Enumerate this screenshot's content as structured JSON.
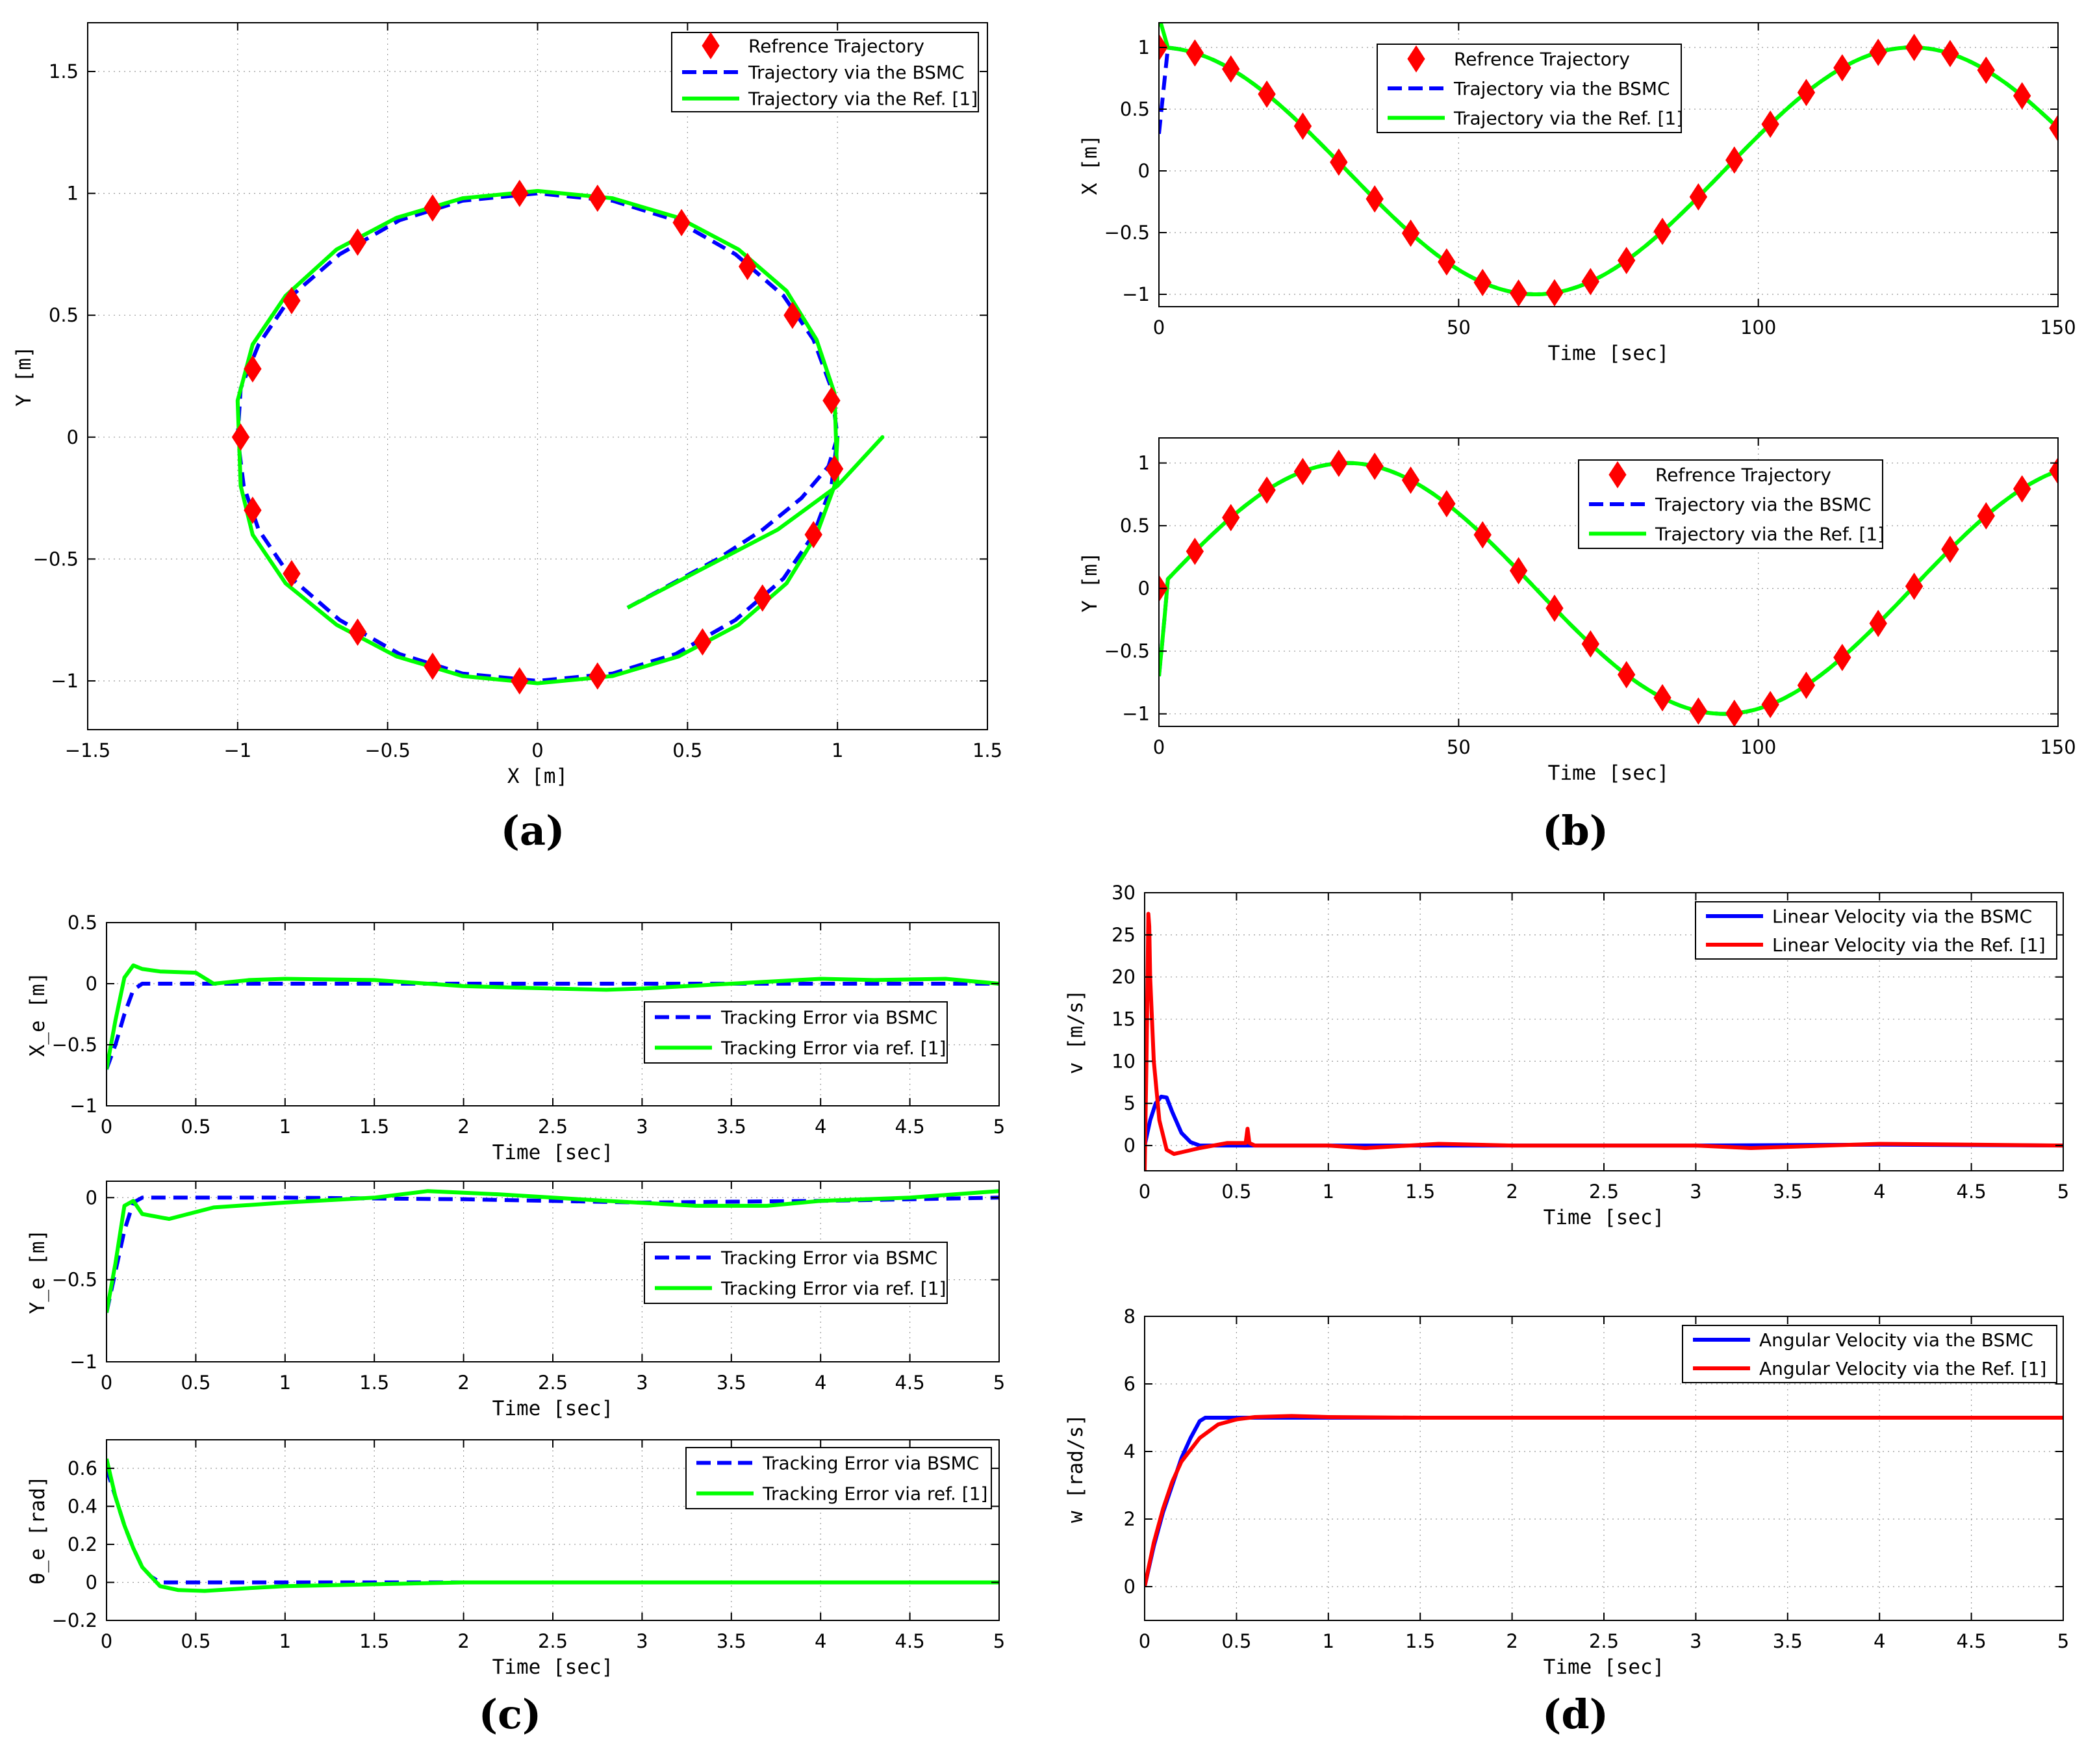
{
  "chart_data": [
    {
      "id": "a",
      "type": "line",
      "panel_label": "(a)",
      "xlabel": "X [m]",
      "ylabel": "Y [m]",
      "xlim": [
        -1.5,
        1.5
      ],
      "ylim": [
        -1.2,
        1.7
      ],
      "xticks": [
        -1.5,
        -1,
        -0.5,
        0,
        0.5,
        1,
        1.5
      ],
      "yticks": [
        -1,
        -0.5,
        0,
        0.5,
        1,
        1.5
      ],
      "xtick_labels": [
        "−1.5",
        "−1",
        "−0.5",
        "0",
        "0.5",
        "1",
        "1.5"
      ],
      "ytick_labels": [
        "−1",
        "−0.5",
        "0",
        "0.5",
        "1",
        "1.5"
      ],
      "grid": true,
      "legend_position": "top-right",
      "series": [
        {
          "name": "Refrence Trajectory",
          "style": "diamond",
          "color": "#ff0000",
          "x": [
            -0.06,
            0.2,
            0.48,
            0.7,
            0.85,
            0.98,
            0.99,
            0.92,
            0.75,
            0.55,
            0.2,
            -0.06,
            -0.35,
            -0.6,
            -0.82,
            -0.95,
            -0.99,
            -0.95,
            -0.82,
            -0.6,
            -0.35
          ],
          "y": [
            1.0,
            0.98,
            0.88,
            0.7,
            0.5,
            0.15,
            -0.13,
            -0.4,
            -0.66,
            -0.84,
            -0.98,
            -1.0,
            -0.94,
            -0.8,
            -0.56,
            -0.3,
            0.0,
            0.28,
            0.56,
            0.8,
            0.94
          ]
        },
        {
          "name": "Trajectory via the BSMC",
          "style": "dashed",
          "color": "#0000ff",
          "x": [
            0.3,
            0.45,
            0.6,
            0.75,
            0.88,
            0.97,
            1.0,
            0.98,
            0.92,
            0.82,
            0.66,
            0.46,
            0.25,
            0.0,
            -0.25,
            -0.46,
            -0.66,
            -0.82,
            -0.93,
            -0.99,
            -1.0,
            -0.98,
            -0.93,
            -0.82,
            -0.66,
            -0.46,
            -0.25,
            0.0,
            0.25,
            0.46,
            0.66,
            0.82,
            0.92,
            0.98,
            1.0
          ],
          "y": [
            -0.7,
            -0.6,
            -0.5,
            -0.38,
            -0.25,
            -0.12,
            0.0,
            0.2,
            0.4,
            0.58,
            0.75,
            0.89,
            0.97,
            1.0,
            0.97,
            0.89,
            0.75,
            0.58,
            0.38,
            0.2,
            0.0,
            -0.2,
            -0.38,
            -0.58,
            -0.75,
            -0.89,
            -0.97,
            -1.0,
            -0.97,
            -0.89,
            -0.75,
            -0.58,
            -0.4,
            -0.2,
            0.0
          ]
        },
        {
          "name": "Trajectory via the Ref. [1]",
          "style": "solid",
          "color": "#00ff00",
          "x": [
            0.3,
            0.55,
            0.8,
            1.0,
            1.15,
            1.0,
            0.99,
            0.93,
            0.83,
            0.67,
            0.47,
            0.25,
            0.0,
            -0.25,
            -0.47,
            -0.67,
            -0.84,
            -0.95,
            -1.0,
            -0.99,
            -0.95,
            -0.84,
            -0.67,
            -0.47,
            -0.25,
            0.0,
            0.25,
            0.47,
            0.67,
            0.83,
            0.93,
            0.99,
            1.0
          ],
          "y": [
            -0.7,
            -0.54,
            -0.38,
            -0.2,
            0.0,
            -0.2,
            0.18,
            0.4,
            0.6,
            0.77,
            0.9,
            0.98,
            1.01,
            0.98,
            0.9,
            0.77,
            0.58,
            0.38,
            0.15,
            -0.2,
            -0.4,
            -0.6,
            -0.77,
            -0.9,
            -0.98,
            -1.01,
            -0.98,
            -0.9,
            -0.77,
            -0.6,
            -0.4,
            -0.2,
            0.0
          ]
        }
      ]
    },
    {
      "id": "b1",
      "type": "line",
      "panel_label": "(b)",
      "xlabel": "Time [sec]",
      "ylabel": "X [m]",
      "xlim": [
        0,
        150
      ],
      "ylim": [
        -1.1,
        1.2
      ],
      "xticks": [
        0,
        50,
        100,
        150
      ],
      "yticks": [
        -1,
        -0.5,
        0,
        0.5,
        1
      ],
      "xtick_labels": [
        "0",
        "50",
        "100",
        "150"
      ],
      "ytick_labels": [
        "−1",
        "−0.5",
        "0",
        "0.5",
        "1"
      ],
      "grid": true,
      "legend_position": "top-center",
      "series": [
        {
          "name": "Refrence Trajectory",
          "style": "diamond",
          "color": "#ff0000",
          "function": "cos",
          "marker_spacing": 6
        },
        {
          "name": "Trajectory via the BSMC",
          "style": "dashed",
          "color": "#0000ff",
          "function": "cos",
          "initial_value": 0.3
        },
        {
          "name": "Trajectory via the Ref. [1]",
          "style": "solid",
          "color": "#00ff00",
          "function": "cos",
          "initial_value": 1.25
        }
      ],
      "period": 125.66
    },
    {
      "id": "b2",
      "type": "line",
      "xlabel": "Time [sec]",
      "ylabel": "Y [m]",
      "xlim": [
        0,
        150
      ],
      "ylim": [
        -1.1,
        1.2
      ],
      "xticks": [
        0,
        50,
        100,
        150
      ],
      "yticks": [
        -1,
        -0.5,
        0,
        0.5,
        1
      ],
      "xtick_labels": [
        "0",
        "50",
        "100",
        "150"
      ],
      "ytick_labels": [
        "−1",
        "−0.5",
        "0",
        "0.5",
        "1"
      ],
      "grid": true,
      "legend_position": "top-right",
      "series": [
        {
          "name": "Refrence Trajectory",
          "style": "diamond",
          "color": "#ff0000",
          "function": "sin",
          "marker_spacing": 6
        },
        {
          "name": "Trajectory via the BSMC",
          "style": "dashed",
          "color": "#0000ff",
          "function": "sin",
          "initial_value": -0.7
        },
        {
          "name": "Trajectory via the Ref. [1]",
          "style": "solid",
          "color": "#00ff00",
          "function": "sin",
          "initial_value": -0.7
        }
      ],
      "period": 125.66
    },
    {
      "id": "c1",
      "type": "line",
      "panel_label": "(c)",
      "xlabel": "Time [sec]",
      "ylabel": "X_e [m]",
      "xlim": [
        0,
        5
      ],
      "ylim": [
        -1,
        0.5
      ],
      "xticks": [
        0,
        0.5,
        1,
        1.5,
        2,
        2.5,
        3,
        3.5,
        4,
        4.5,
        5
      ],
      "yticks": [
        -1,
        -0.5,
        0,
        0.5
      ],
      "xtick_labels": [
        "0",
        "0.5",
        "1",
        "1.5",
        "2",
        "2.5",
        "3",
        "3.5",
        "4",
        "4.5",
        "5"
      ],
      "ytick_labels": [
        "−1",
        "−0.5",
        "0",
        "0.5"
      ],
      "grid": true,
      "legend_position": "right",
      "series": [
        {
          "name": "Tracking Error via BSMC",
          "style": "dashed",
          "color": "#0000ff",
          "x": [
            0,
            0.05,
            0.1,
            0.15,
            0.2,
            0.3,
            0.6,
            1.0,
            2.0,
            3.0,
            4.0,
            5.0
          ],
          "y": [
            -0.7,
            -0.5,
            -0.25,
            -0.05,
            0.0,
            0.0,
            0.0,
            0.0,
            0.0,
            0.0,
            0.0,
            0.0
          ]
        },
        {
          "name": "Tracking Error via ref. [1]",
          "style": "solid",
          "color": "#00ff00",
          "x": [
            0,
            0.05,
            0.1,
            0.15,
            0.2,
            0.3,
            0.5,
            0.6,
            0.8,
            1.0,
            1.5,
            2.0,
            2.5,
            2.8,
            3.0,
            3.5,
            4.0,
            4.3,
            4.7,
            5.0
          ],
          "y": [
            -0.7,
            -0.3,
            0.05,
            0.15,
            0.12,
            0.1,
            0.09,
            0.0,
            0.03,
            0.04,
            0.03,
            -0.02,
            -0.04,
            -0.05,
            -0.04,
            0.0,
            0.04,
            0.03,
            0.04,
            0.0
          ]
        }
      ]
    },
    {
      "id": "c2",
      "type": "line",
      "xlabel": "Time [sec]",
      "ylabel": "Y_e [m]",
      "xlim": [
        0,
        5
      ],
      "ylim": [
        -1,
        0.1
      ],
      "xticks": [
        0,
        0.5,
        1,
        1.5,
        2,
        2.5,
        3,
        3.5,
        4,
        4.5,
        5
      ],
      "yticks": [
        -1,
        -0.5,
        0
      ],
      "xtick_labels": [
        "0",
        "0.5",
        "1",
        "1.5",
        "2",
        "2.5",
        "3",
        "3.5",
        "4",
        "4.5",
        "5"
      ],
      "ytick_labels": [
        "−1",
        "−0.5",
        "0"
      ],
      "grid": true,
      "legend_position": "right",
      "series": [
        {
          "name": "Tracking Error via BSMC",
          "style": "dashed",
          "color": "#0000ff",
          "x": [
            0,
            0.05,
            0.1,
            0.15,
            0.2,
            0.5,
            1.0,
            2.0,
            3.0,
            4.0,
            5.0
          ],
          "y": [
            -0.7,
            -0.45,
            -0.2,
            -0.03,
            0.0,
            0.0,
            0.0,
            -0.01,
            -0.03,
            -0.02,
            0.0
          ]
        },
        {
          "name": "Tracking Error via ref. [1]",
          "style": "solid",
          "color": "#00ff00",
          "x": [
            0,
            0.05,
            0.1,
            0.15,
            0.2,
            0.35,
            0.6,
            1.0,
            1.5,
            1.8,
            2.2,
            2.8,
            3.3,
            3.7,
            4.0,
            4.5,
            5.0
          ],
          "y": [
            -0.7,
            -0.4,
            -0.05,
            -0.02,
            -0.1,
            -0.13,
            -0.06,
            -0.03,
            0.0,
            0.04,
            0.02,
            -0.02,
            -0.05,
            -0.05,
            -0.02,
            0.0,
            0.04
          ]
        }
      ]
    },
    {
      "id": "c3",
      "type": "line",
      "xlabel": "Time [sec]",
      "ylabel": "θ_e [rad]",
      "xlim": [
        0,
        5
      ],
      "ylim": [
        -0.2,
        0.75
      ],
      "xticks": [
        0,
        0.5,
        1,
        1.5,
        2,
        2.5,
        3,
        3.5,
        4,
        4.5,
        5
      ],
      "yticks": [
        -0.2,
        0,
        0.2,
        0.4,
        0.6
      ],
      "xtick_labels": [
        "0",
        "0.5",
        "1",
        "1.5",
        "2",
        "2.5",
        "3",
        "3.5",
        "4",
        "4.5",
        "5"
      ],
      "ytick_labels": [
        "−0.2",
        "0",
        "0.2",
        "0.4",
        "0.6"
      ],
      "grid": true,
      "legend_position": "top-right",
      "series": [
        {
          "name": "Tracking Error via BSMC",
          "style": "dashed",
          "color": "#0000ff",
          "x": [
            0,
            0.05,
            0.1,
            0.15,
            0.2,
            0.25,
            0.3,
            0.4,
            1.0,
            5.0
          ],
          "y": [
            0.6,
            0.45,
            0.3,
            0.18,
            0.08,
            0.03,
            0.0,
            0.0,
            0.0,
            0.0
          ]
        },
        {
          "name": "Tracking Error via ref. [1]",
          "style": "solid",
          "color": "#00ff00",
          "x": [
            0,
            0.05,
            0.1,
            0.15,
            0.2,
            0.3,
            0.4,
            0.55,
            0.8,
            1.0,
            1.5,
            2.0,
            5.0
          ],
          "y": [
            0.65,
            0.45,
            0.3,
            0.18,
            0.08,
            -0.02,
            -0.04,
            -0.045,
            -0.03,
            -0.02,
            -0.01,
            0.0,
            0.0
          ]
        }
      ]
    },
    {
      "id": "d1",
      "type": "line",
      "panel_label": "(d)",
      "xlabel": "Time [sec]",
      "ylabel": "v [m/s]",
      "xlim": [
        0,
        5
      ],
      "ylim": [
        -3,
        30
      ],
      "xticks": [
        0,
        0.5,
        1,
        1.5,
        2,
        2.5,
        3,
        3.5,
        4,
        4.5,
        5
      ],
      "yticks": [
        0,
        5,
        10,
        15,
        20,
        25,
        30
      ],
      "xtick_labels": [
        "0",
        "0.5",
        "1",
        "1.5",
        "2",
        "2.5",
        "3",
        "3.5",
        "4",
        "4.5",
        "5"
      ],
      "ytick_labels": [
        "0",
        "5",
        "10",
        "15",
        "20",
        "25",
        "30"
      ],
      "grid": true,
      "legend_position": "top-right",
      "series": [
        {
          "name": "Linear Velocity via the BSMC",
          "style": "solid",
          "color": "#0000ff",
          "x": [
            0,
            0.03,
            0.06,
            0.09,
            0.12,
            0.15,
            0.2,
            0.25,
            0.3,
            0.4,
            1.0,
            2.0,
            3.0,
            4.0,
            5.0
          ],
          "y": [
            0.0,
            3.0,
            5.0,
            5.8,
            5.7,
            4.0,
            1.5,
            0.4,
            0.0,
            0.0,
            0.0,
            0.0,
            0.0,
            0.1,
            0.0
          ]
        },
        {
          "name": "Linear Velocity via the Ref. [1]",
          "style": "solid",
          "color": "#ff0000",
          "x": [
            0,
            0.01,
            0.02,
            0.025,
            0.03,
            0.05,
            0.08,
            0.12,
            0.16,
            0.2,
            0.3,
            0.45,
            0.55,
            0.56,
            0.57,
            0.6,
            1.0,
            1.2,
            1.6,
            2.0,
            3.0,
            3.3,
            4.0,
            5.0
          ],
          "y": [
            -3.0,
            10.0,
            27.5,
            26.0,
            20.0,
            10.0,
            3.0,
            -0.5,
            -1.0,
            -0.8,
            -0.3,
            0.3,
            0.3,
            2.0,
            0.3,
            0.0,
            0.0,
            -0.3,
            0.2,
            0.0,
            0.0,
            -0.3,
            0.2,
            0.0
          ]
        }
      ]
    },
    {
      "id": "d2",
      "type": "line",
      "xlabel": "Time [sec]",
      "ylabel": "w [rad/s]",
      "xlim": [
        0,
        5
      ],
      "ylim": [
        -1,
        8
      ],
      "xticks": [
        0,
        0.5,
        1,
        1.5,
        2,
        2.5,
        3,
        3.5,
        4,
        4.5,
        5
      ],
      "yticks": [
        0,
        2,
        4,
        6,
        8
      ],
      "xtick_labels": [
        "0",
        "0.5",
        "1",
        "1.5",
        "2",
        "2.5",
        "3",
        "3.5",
        "4",
        "4.5",
        "5"
      ],
      "ytick_labels": [
        "0",
        "2",
        "4",
        "6",
        "8"
      ],
      "grid": true,
      "legend_position": "top-right",
      "series": [
        {
          "name": "Angular Velocity via the BSMC",
          "style": "solid",
          "color": "#0000ff",
          "x": [
            0,
            0.05,
            0.1,
            0.15,
            0.2,
            0.25,
            0.3,
            0.33,
            0.5,
            1.0,
            5.0
          ],
          "y": [
            0.0,
            1.2,
            2.2,
            3.0,
            3.8,
            4.4,
            4.9,
            5.0,
            5.0,
            5.0,
            5.0
          ]
        },
        {
          "name": "Angular Velocity via the Ref. [1]",
          "style": "solid",
          "color": "#ff0000",
          "x": [
            0,
            0.05,
            0.1,
            0.15,
            0.2,
            0.3,
            0.4,
            0.5,
            0.6,
            0.8,
            1.0,
            1.5,
            5.0
          ],
          "y": [
            0.0,
            1.3,
            2.3,
            3.1,
            3.7,
            4.4,
            4.8,
            4.95,
            5.02,
            5.05,
            5.02,
            5.0,
            5.0
          ]
        }
      ]
    }
  ]
}
